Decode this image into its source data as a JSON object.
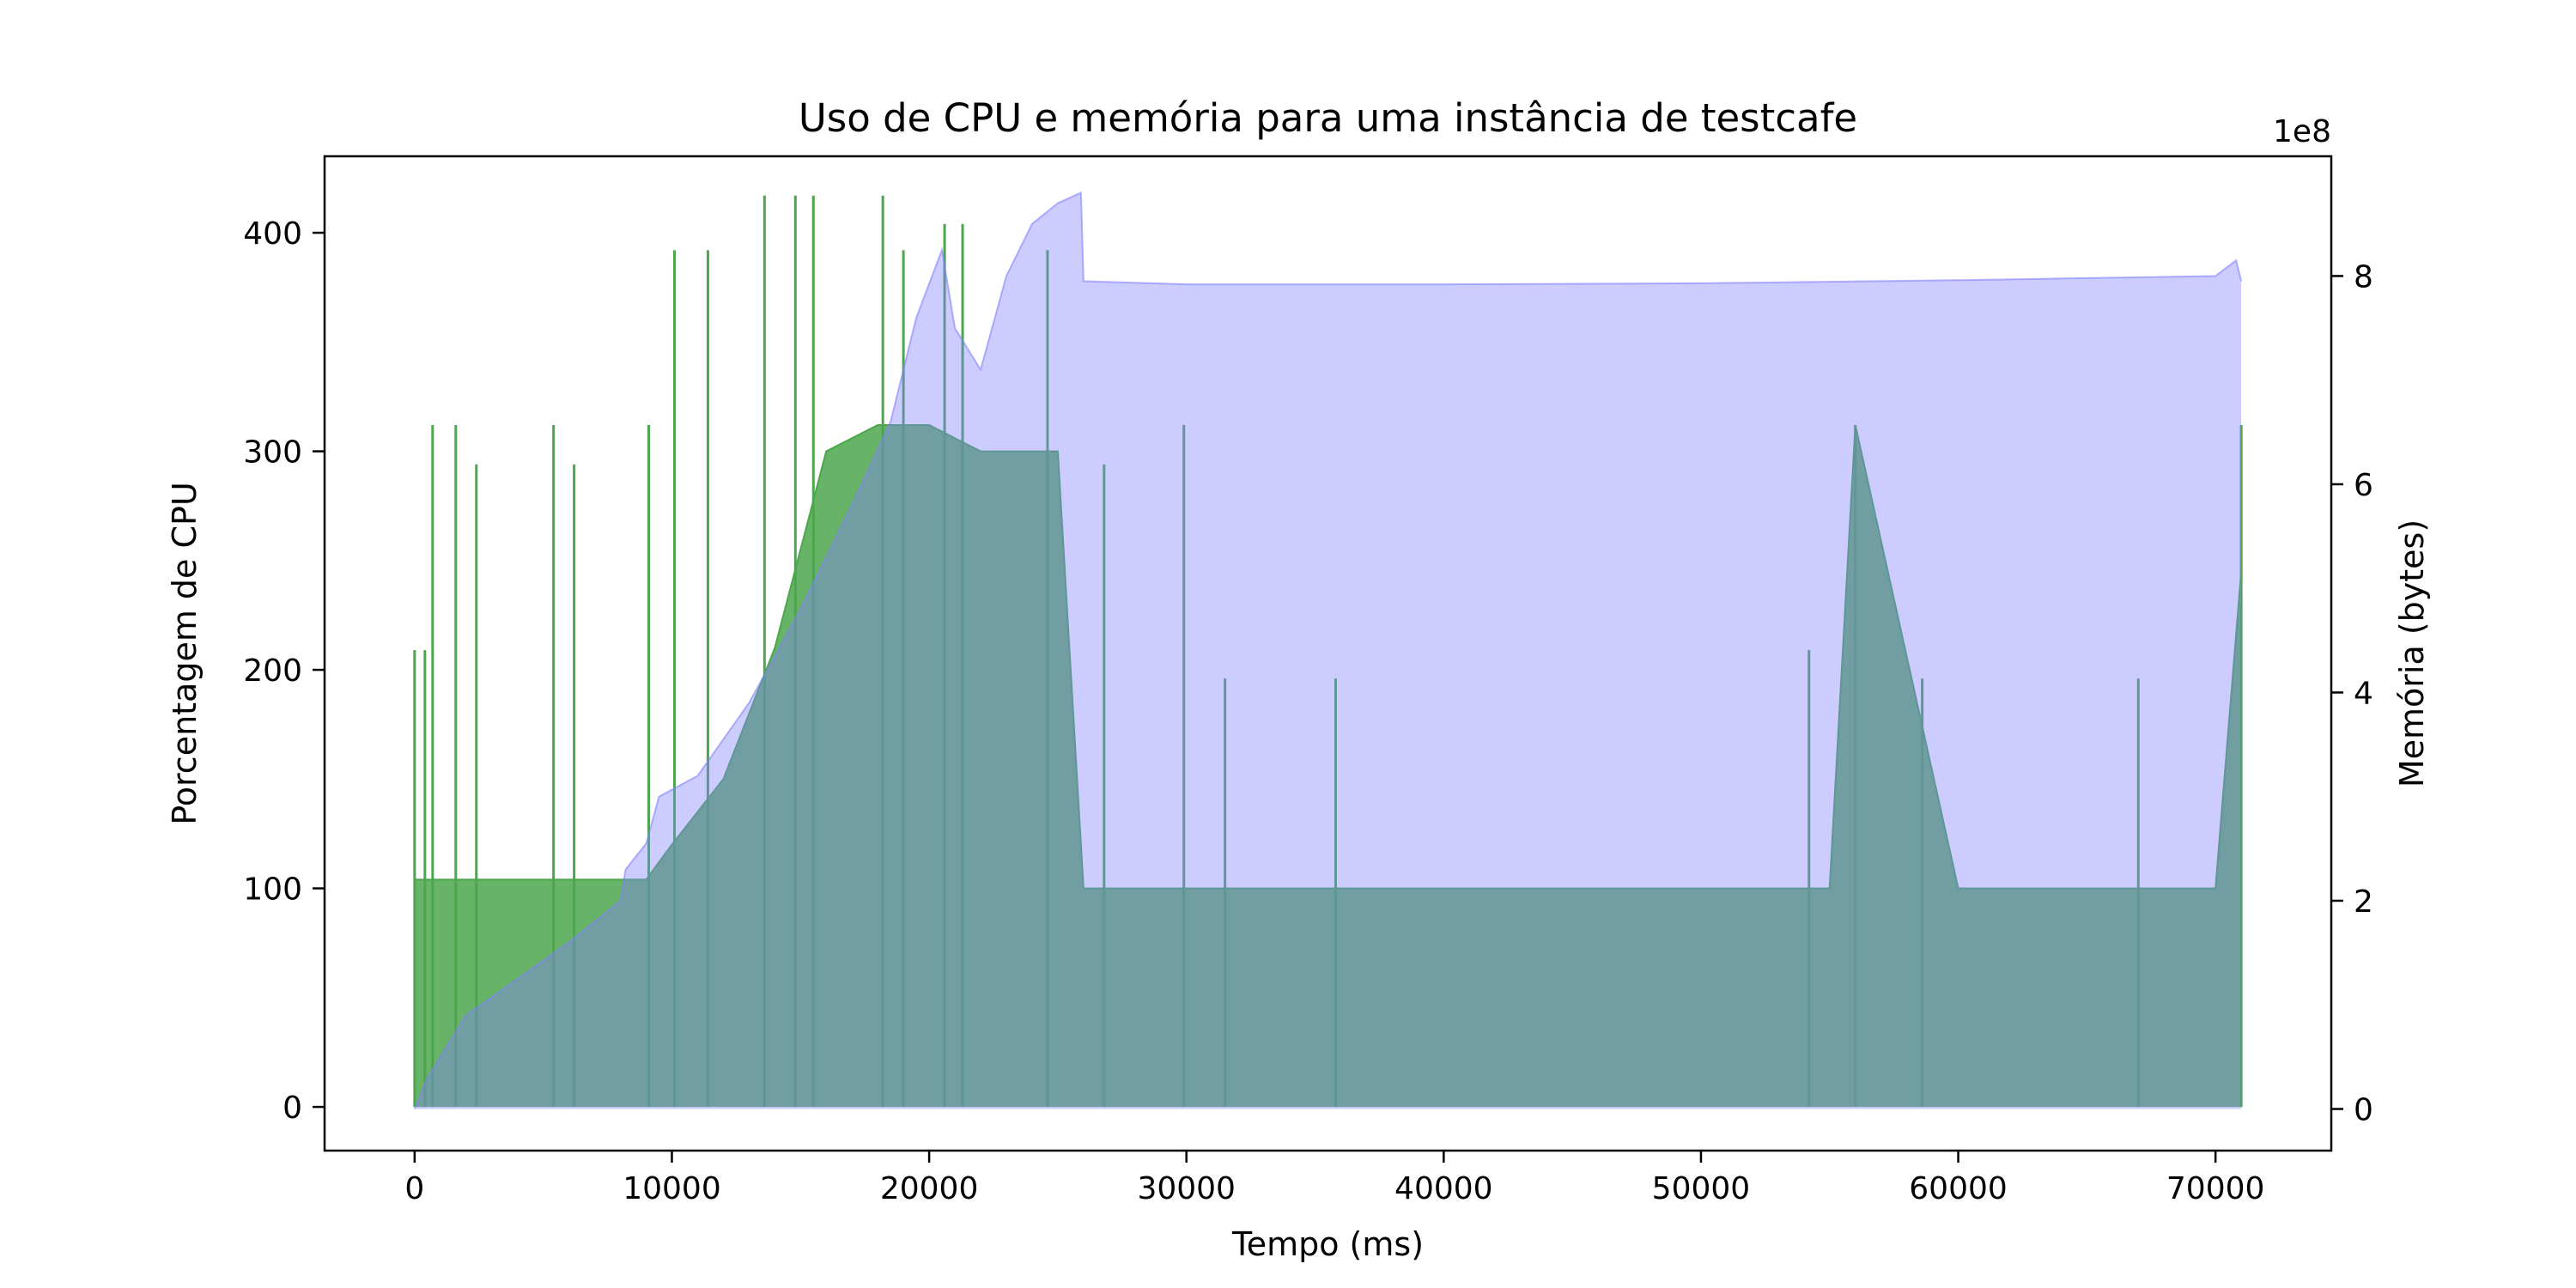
{
  "chart_data": {
    "type": "area",
    "title": "Uso de CPU e memória para uma instância de testcafe",
    "xlabel": "Tempo (ms)",
    "ylabel": "Porcentagem de CPU",
    "ylabel_right": "Memória (bytes)",
    "right_axis_offset": "1e8",
    "xlim": [
      -3500,
      74500
    ],
    "ylim": [
      -20,
      435
    ],
    "ylim_right": [
      -0.4,
      9.15
    ],
    "x_ticks": [
      0,
      10000,
      20000,
      30000,
      40000,
      50000,
      60000,
      70000
    ],
    "x_tick_labels": [
      "0",
      "10000",
      "20000",
      "30000",
      "40000",
      "50000",
      "60000",
      "70000"
    ],
    "y_ticks": [
      0,
      100,
      200,
      300,
      400
    ],
    "y_tick_labels": [
      "0",
      "100",
      "200",
      "300",
      "400"
    ],
    "y_right_ticks": [
      0,
      2,
      4,
      6,
      8
    ],
    "y_right_tick_labels": [
      "0",
      "2",
      "4",
      "6",
      "8"
    ],
    "grid": false,
    "series": [
      {
        "name": "CPU",
        "axis": "left",
        "color": "#4ca64c",
        "x": [
          0,
          2000,
          4000,
          6000,
          8000,
          9000,
          10000,
          12000,
          14000,
          16000,
          18000,
          20000,
          22000,
          24000,
          25000,
          26000,
          30000,
          40000,
          50000,
          55000,
          56000,
          60000,
          70000,
          71000
        ],
        "values": [
          104,
          104,
          104,
          104,
          104,
          104,
          120,
          150,
          210,
          300,
          312,
          312,
          300,
          300,
          300,
          100,
          100,
          100,
          100,
          100,
          312,
          100,
          100,
          245
        ],
        "spikes": [
          {
            "x": 0,
            "value": 209
          },
          {
            "x": 400,
            "value": 209
          },
          {
            "x": 700,
            "value": 312
          },
          {
            "x": 1600,
            "value": 312
          },
          {
            "x": 2400,
            "value": 294
          },
          {
            "x": 5400,
            "value": 312
          },
          {
            "x": 6200,
            "value": 294
          },
          {
            "x": 9100,
            "value": 312
          },
          {
            "x": 10100,
            "value": 392
          },
          {
            "x": 11400,
            "value": 392
          },
          {
            "x": 13600,
            "value": 417
          },
          {
            "x": 14800,
            "value": 417
          },
          {
            "x": 15500,
            "value": 417
          },
          {
            "x": 18200,
            "value": 417
          },
          {
            "x": 19000,
            "value": 392
          },
          {
            "x": 20600,
            "value": 404
          },
          {
            "x": 21300,
            "value": 404
          },
          {
            "x": 24600,
            "value": 392
          },
          {
            "x": 26800,
            "value": 294
          },
          {
            "x": 29900,
            "value": 312
          },
          {
            "x": 31500,
            "value": 196
          },
          {
            "x": 35800,
            "value": 196
          },
          {
            "x": 54200,
            "value": 209
          },
          {
            "x": 56000,
            "value": 312
          },
          {
            "x": 58600,
            "value": 196
          },
          {
            "x": 67000,
            "value": 196
          },
          {
            "x": 71000,
            "value": 312
          }
        ]
      },
      {
        "name": "Memória",
        "axis": "right",
        "color": "#8080ff",
        "x": [
          0,
          500,
          1000,
          2000,
          4000,
          6000,
          8000,
          8200,
          9000,
          9500,
          11000,
          13000,
          15000,
          17000,
          18500,
          19500,
          20500,
          21000,
          22000,
          23000,
          24000,
          25000,
          25900,
          26000,
          30000,
          40000,
          50000,
          60000,
          70000,
          70800,
          71000
        ],
        "values": [
          0,
          0.3,
          0.5,
          0.9,
          1.25,
          1.6,
          2.0,
          2.3,
          2.55,
          3.0,
          3.2,
          3.9,
          4.8,
          5.8,
          6.6,
          7.6,
          8.25,
          7.5,
          7.1,
          8.0,
          8.5,
          8.7,
          8.8,
          7.95,
          7.92,
          7.92,
          7.93,
          7.96,
          8.0,
          8.15,
          7.95
        ]
      }
    ]
  }
}
